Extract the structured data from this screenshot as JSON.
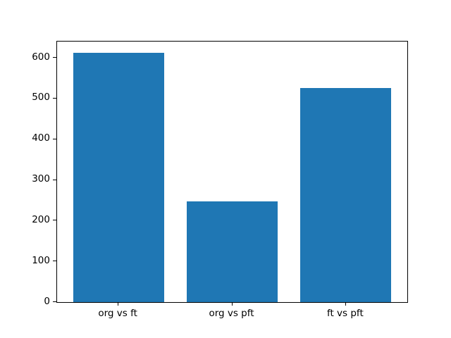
{
  "figure": {
    "background_color": "#ffffff",
    "axes_background_color": "#ffffff",
    "spine_color": "#000000",
    "tick_color": "#000000",
    "tick_label_color": "#000000"
  },
  "chart_data": {
    "type": "bar",
    "title": "",
    "xlabel": "",
    "ylabel": "",
    "categories": [
      "org vs ft",
      "org vs pft",
      "ft vs pft"
    ],
    "values": [
      612,
      248,
      526
    ],
    "bar_color": "#1f77b4",
    "bar_width_fraction": 0.8,
    "yticks": [
      0,
      100,
      200,
      300,
      400,
      500,
      600
    ],
    "ylim": [
      0,
      640
    ],
    "xlim": [
      -0.54,
      2.54
    ],
    "grid": false,
    "legend_position": "none"
  }
}
